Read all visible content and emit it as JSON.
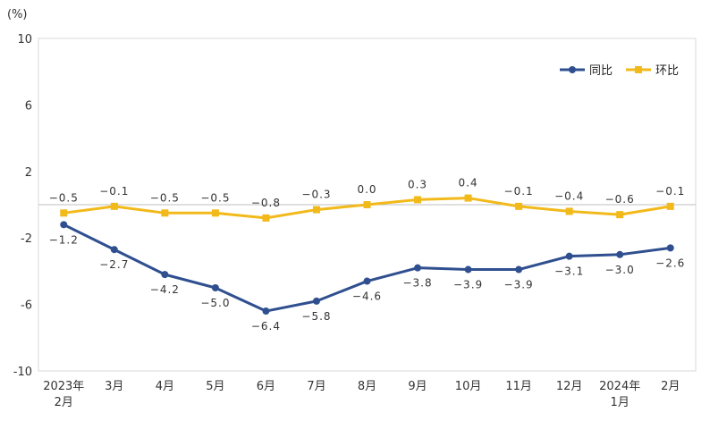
{
  "chart_data": {
    "type": "line",
    "unit_label": "(%)",
    "categories": [
      "2023年\n2月",
      "3月",
      "4月",
      "5月",
      "6月",
      "7月",
      "8月",
      "9月",
      "10月",
      "11月",
      "12月",
      "2024年\n1月",
      "2月"
    ],
    "ylim": [
      -10,
      10
    ],
    "yticks": [
      10,
      6,
      2,
      -2,
      -6,
      -10
    ],
    "series": [
      {
        "name": "同比",
        "color": "#2F4F8F",
        "marker": "circle",
        "values": [
          -1.2,
          -2.7,
          -4.2,
          -5.0,
          -6.4,
          -5.8,
          -4.6,
          -3.8,
          -3.9,
          -3.9,
          -3.1,
          -3.0,
          -2.6
        ],
        "labels": [
          "-1.2",
          "-2.7",
          "-4.2",
          "-5.0",
          "-6.4",
          "-5.8",
          "-4.6",
          "-3.8",
          "-3.9",
          "-3.9",
          "-3.1",
          "-3.0",
          "-2.6"
        ]
      },
      {
        "name": "环比",
        "color": "#F2B91A",
        "marker": "square",
        "values": [
          -0.5,
          -0.1,
          -0.5,
          -0.5,
          -0.8,
          -0.3,
          0.0,
          0.3,
          0.4,
          -0.1,
          -0.4,
          -0.6,
          -0.1
        ],
        "labels": [
          "-0.5",
          "-0.1",
          "-0.5",
          "-0.5",
          "-0.8",
          "-0.3",
          "0.0",
          "0.3",
          "0.4",
          "-0.1",
          "-0.4",
          "-0.6",
          "-0.1"
        ]
      }
    ],
    "grid": false,
    "zero_line": true,
    "legend_position": "top-right"
  }
}
